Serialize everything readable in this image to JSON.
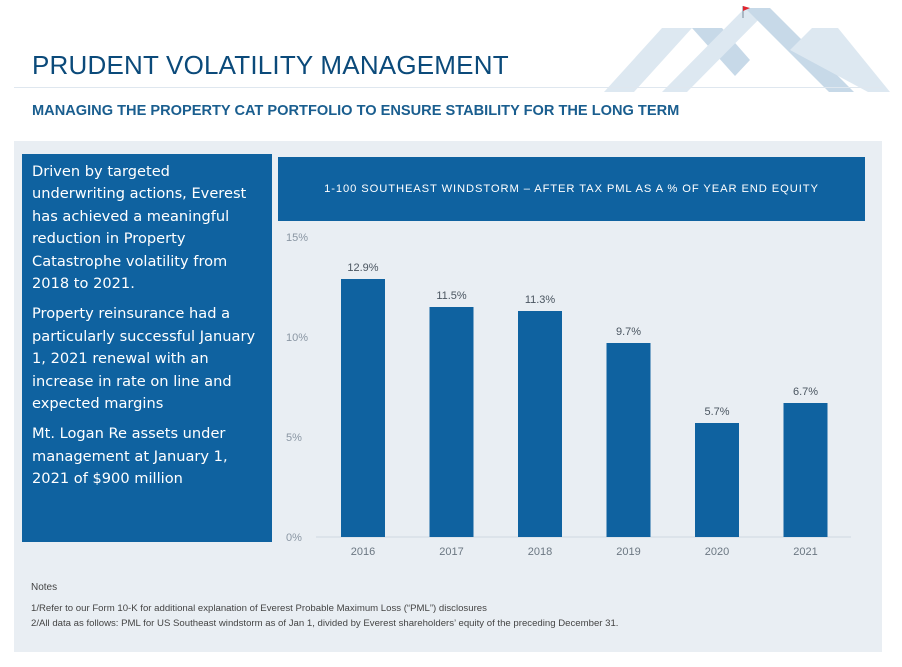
{
  "page": {
    "title": "PRUDENT VOLATILITY MANAGEMENT",
    "subtitle": "MANAGING THE PROPERTY CAT PORTFOLIO TO ENSURE STABILITY FOR THE LONG TERM"
  },
  "sidebar": {
    "paragraphs": [
      "Driven by targeted underwriting actions, Everest has achieved a meaningful reduction in Property Catastrophe volatility from 2018 to 2021.",
      "Property reinsurance had a particularly successful January 1, 2021 renewal with an increase in rate on line and expected margins",
      "Mt. Logan Re assets under management at January 1, 2021 of $900 million"
    ]
  },
  "notes": {
    "label": "Notes",
    "items": [
      "1/Refer to our Form 10-K for additional explanation of Everest Probable Maximum Loss (“PML”) disclosures",
      "2/All data as follows: PML for US Southeast windstorm as of Jan 1, divided by Everest shareholders’ equity of the preceding December 31."
    ]
  },
  "colors": {
    "brand_blue": "#0f62a0",
    "bar": "#0f62a0",
    "title": "#0b4a7a",
    "panel_bg": "#e9eef3",
    "logo_light": "#d5e3ee",
    "flag": "#e0262f"
  },
  "chart_data": {
    "type": "bar",
    "title": "1-100 SOUTHEAST WINDSTORM – AFTER TAX PML AS A % OF YEAR END EQUITY",
    "categories": [
      "2016",
      "2017",
      "2018",
      "2019",
      "2020",
      "2021"
    ],
    "values": [
      12.9,
      11.5,
      11.3,
      9.7,
      5.7,
      6.7
    ],
    "data_labels": [
      "12.9%",
      "11.5%",
      "11.3%",
      "9.7%",
      "5.7%",
      "6.7%"
    ],
    "y_ticks": [
      0,
      5,
      10,
      15
    ],
    "y_tick_labels": [
      "0%",
      "5%",
      "10%",
      "15%"
    ],
    "xlabel": "",
    "ylabel": "",
    "ylim": [
      0,
      15
    ],
    "grid": false
  }
}
